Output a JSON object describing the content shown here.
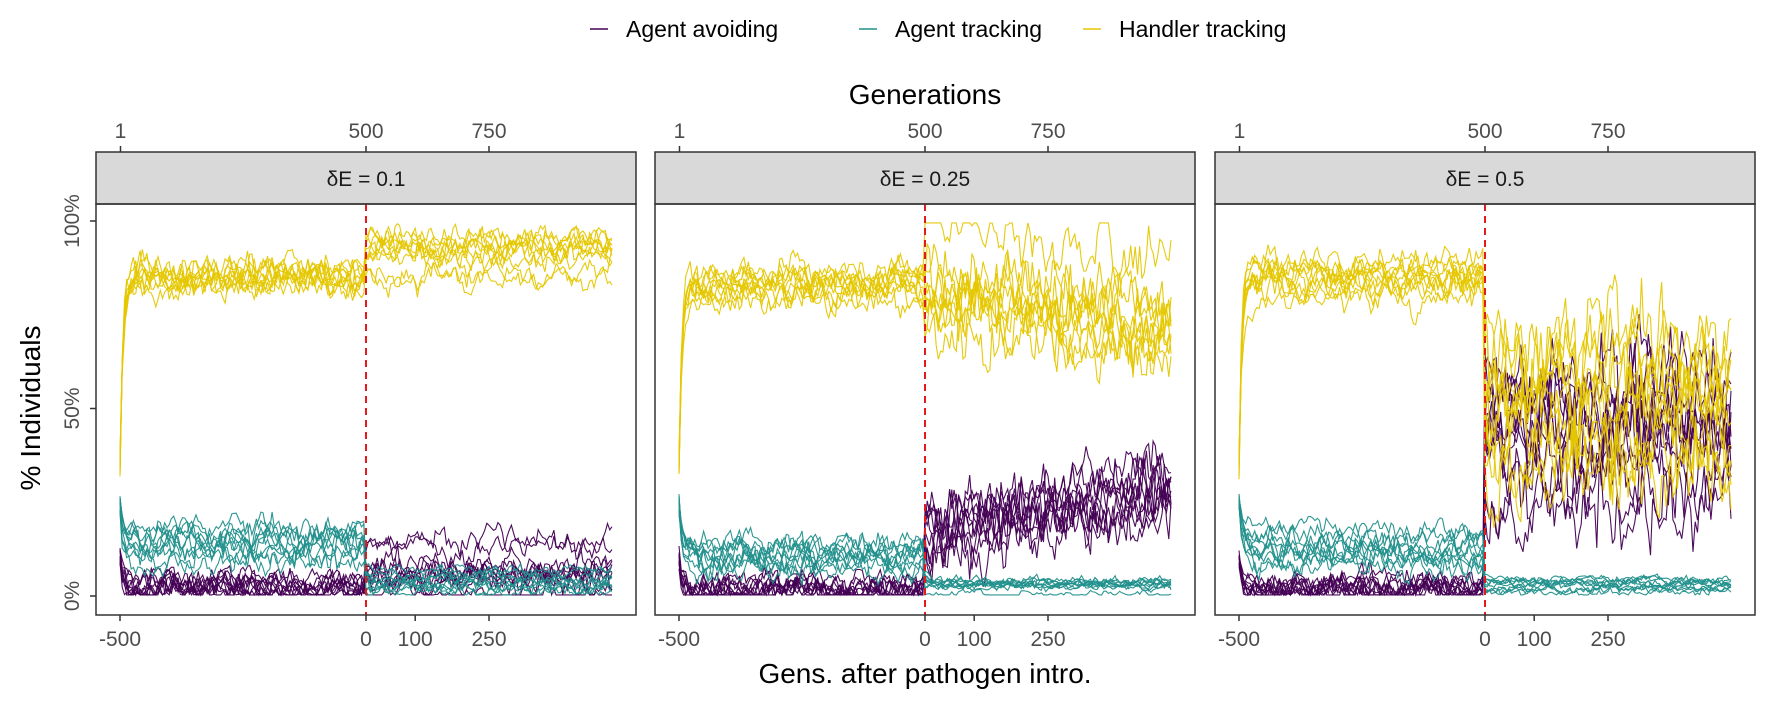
{
  "chart_data": {
    "type": "line",
    "ylabel": "% Individuals",
    "xlabel_bottom": "Gens. after pathogen intro.",
    "xlabel_top": "Generations",
    "ylim": [
      0,
      1
    ],
    "y_ticks": [
      0,
      0.5,
      1
    ],
    "y_tick_labels": [
      "0%",
      "50%",
      "100%"
    ],
    "x_bottom_range": [
      -500,
      500
    ],
    "x_bottom_ticks": [
      -500,
      0,
      100,
      250
    ],
    "x_bottom_tick_labels": [
      "-500",
      "0",
      "100",
      "250"
    ],
    "x_top_ticks": [
      1,
      500,
      750
    ],
    "x_top_tick_labels": [
      "1",
      "500",
      "750"
    ],
    "x_top_offset": 500,
    "pathogen_intro_x": 0,
    "legend": {
      "position": "top",
      "entries": [
        {
          "name": "Agent avoiding",
          "color": "#440154"
        },
        {
          "name": "Agent tracking",
          "color": "#21908C"
        },
        {
          "name": "Handler tracking",
          "color": "#E5C700"
        }
      ]
    },
    "grid": false,
    "replicates_per_series": 10,
    "panels": [
      {
        "strip": "δE = 0.1",
        "series": [
          {
            "name": "Agent avoiding",
            "color": "#440154",
            "before_mean": 0.02,
            "after_mean": 0.07,
            "after_spread": 0.06,
            "after_trend": 0.0
          },
          {
            "name": "Agent tracking",
            "color": "#21908C",
            "before_mean": 0.13,
            "after_mean": 0.04,
            "after_spread": 0.03,
            "after_trend": 0.0
          },
          {
            "name": "Handler tracking",
            "color": "#E5C700",
            "before_mean": 0.85,
            "after_mean": 0.92,
            "after_spread": 0.06,
            "after_trend": 0.0
          }
        ]
      },
      {
        "strip": "δE = 0.25",
        "series": [
          {
            "name": "Agent avoiding",
            "color": "#440154",
            "before_mean": 0.02,
            "after_mean": 0.15,
            "after_spread": 0.14,
            "after_trend": 0.12
          },
          {
            "name": "Agent tracking",
            "color": "#21908C",
            "before_mean": 0.13,
            "after_mean": 0.03,
            "after_spread": 0.02,
            "after_trend": 0.0
          },
          {
            "name": "Handler tracking",
            "color": "#E5C700",
            "before_mean": 0.85,
            "after_mean": 0.8,
            "after_spread": 0.15,
            "after_trend": -0.1
          }
        ]
      },
      {
        "strip": "δE = 0.5",
        "series": [
          {
            "name": "Agent avoiding",
            "color": "#440154",
            "before_mean": 0.02,
            "after_mean": 0.45,
            "after_spread": 0.22,
            "after_trend": 0.0
          },
          {
            "name": "Agent tracking",
            "color": "#21908C",
            "before_mean": 0.13,
            "after_mean": 0.03,
            "after_spread": 0.02,
            "after_trend": 0.0
          },
          {
            "name": "Handler tracking",
            "color": "#E5C700",
            "before_mean": 0.85,
            "after_mean": 0.55,
            "after_spread": 0.22,
            "after_trend": 0.0
          }
        ]
      }
    ]
  }
}
